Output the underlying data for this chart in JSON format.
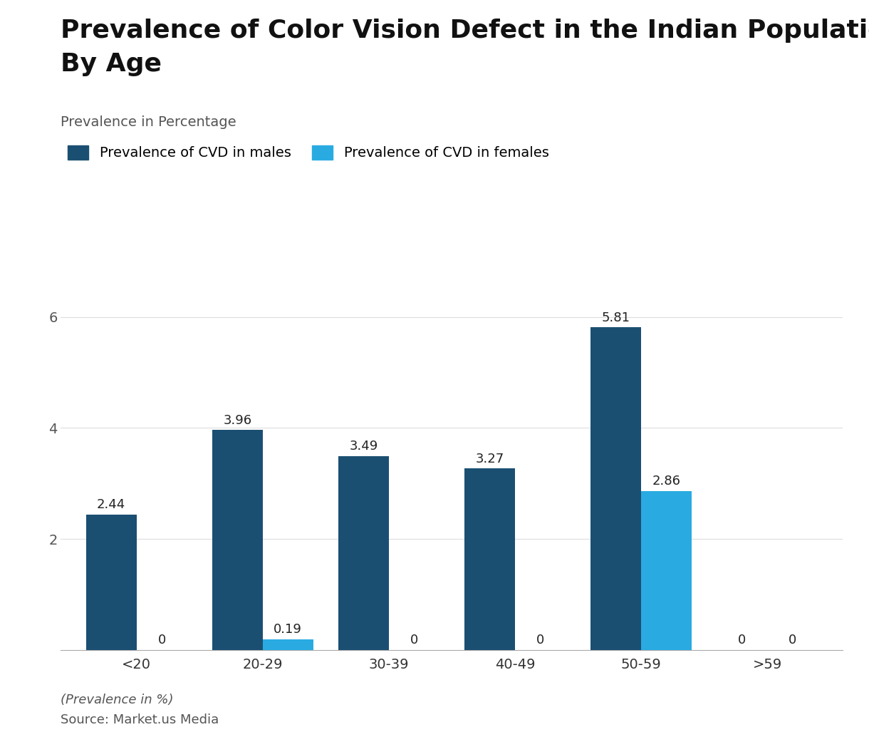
{
  "title_line1": "Prevalence of Color Vision Defect in the Indian Population -",
  "title_line2": "By Age",
  "ylabel_label": "Prevalence in Percentage",
  "categories": [
    "<20",
    "20-29",
    "30-39",
    "40-49",
    "50-59",
    ">59"
  ],
  "male_values": [
    2.44,
    3.96,
    3.49,
    3.27,
    5.81,
    0
  ],
  "female_values": [
    0,
    0.19,
    0,
    0,
    2.86,
    0
  ],
  "male_color": "#1B4F72",
  "female_color": "#29ABE2",
  "bar_width": 0.4,
  "ylim": [
    0,
    7
  ],
  "yticks": [
    2,
    4,
    6
  ],
  "legend_male": "Prevalence of CVD in males",
  "legend_female": "Prevalence of CVD in females",
  "footnote_italic": "(Prevalence in %)",
  "footnote_source": "Source: Market.us Media",
  "background_color": "#ffffff",
  "grid_color": "#dddddd",
  "title_fontsize": 26,
  "label_fontsize": 14,
  "tick_fontsize": 14,
  "bar_label_fontsize": 13,
  "legend_fontsize": 14,
  "footnote_fontsize": 13
}
